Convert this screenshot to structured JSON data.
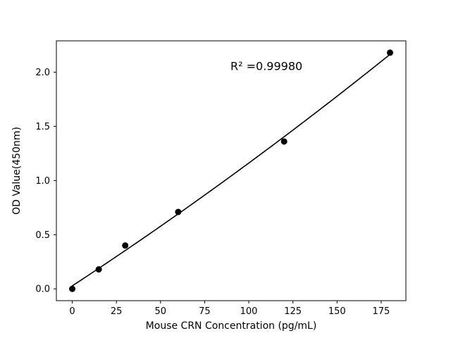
{
  "chart_data": {
    "type": "scatter",
    "title": "",
    "xlabel": "Mouse CRN Concentration (pg/mL)",
    "ylabel": "OD Value(450nm)",
    "annotation": {
      "text": "R² =0.99980",
      "x": 110,
      "y": 2.02
    },
    "x": [
      0,
      15,
      30,
      60,
      120,
      180
    ],
    "y": [
      0.0,
      0.18,
      0.4,
      0.71,
      1.36,
      2.18
    ],
    "fit": {
      "type": "quadratic",
      "coefficients": [
        6.64e-06,
        0.010672,
        0.027612
      ],
      "r_squared": 0.9998
    },
    "xlim": [
      -9,
      189
    ],
    "ylim": [
      -0.109,
      2.289
    ],
    "xticks": [
      0,
      25,
      50,
      75,
      100,
      125,
      150,
      175
    ],
    "xtick_labels": [
      "0",
      "25",
      "50",
      "75",
      "100",
      "125",
      "150",
      "175"
    ],
    "yticks": [
      0.0,
      0.5,
      1.0,
      1.5,
      2.0
    ],
    "ytick_labels": [
      "0.0",
      "0.5",
      "1.0",
      "1.5",
      "2.0"
    ],
    "grid": false,
    "legend_position": "none",
    "colors": {
      "background": "#ffffff",
      "axes": "#000000",
      "marker": "#000000",
      "line": "#000000"
    },
    "marker_radius": 4.5,
    "line_width": 1.6
  }
}
